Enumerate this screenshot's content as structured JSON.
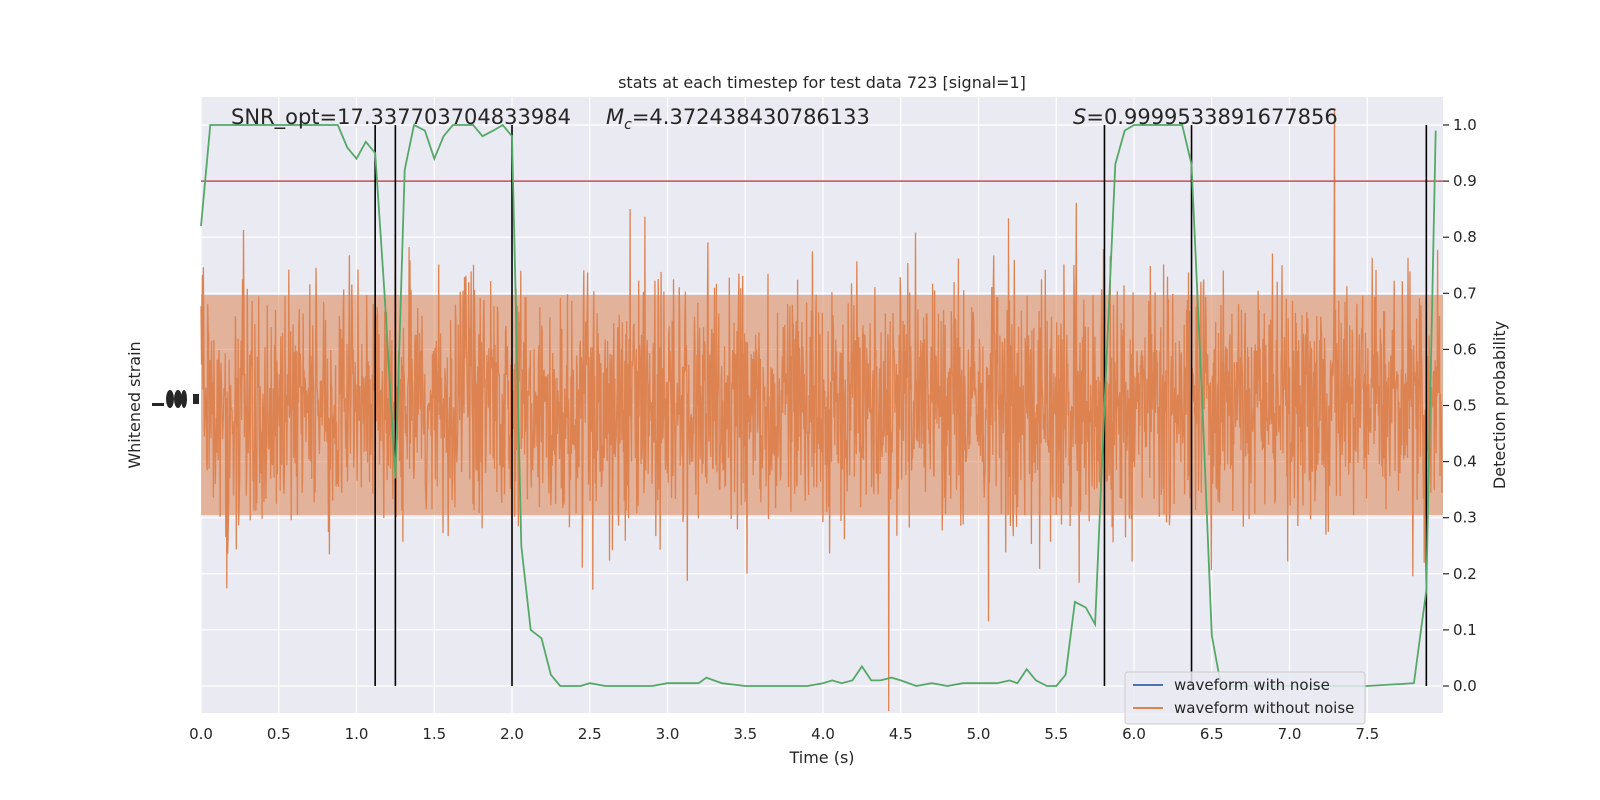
{
  "chart_data": {
    "type": "line",
    "title": "stats at each timestep for test data 723 [signal=1]",
    "xlabel": "Time (s)",
    "ylabel_left": "Whitened strain",
    "ylabel_right": "Detection probability",
    "xlim": [
      0.0,
      8.0
    ],
    "ylim_right": [
      -0.05,
      1.03
    ],
    "x_ticks": [
      0.0,
      0.5,
      1.0,
      1.5,
      2.0,
      2.5,
      3.0,
      3.5,
      4.0,
      4.5,
      5.0,
      5.5,
      6.0,
      6.5,
      7.0,
      7.5
    ],
    "x_tick_labels": [
      "0.0",
      "0.5",
      "1.0",
      "1.5",
      "2.0",
      "2.5",
      "3.0",
      "3.5",
      "4.0",
      "4.5",
      "5.0",
      "5.5",
      "6.0",
      "6.5",
      "7.0",
      "7.5"
    ],
    "y_right_ticks": [
      0.0,
      0.1,
      0.2,
      0.3,
      0.4,
      0.5,
      0.6,
      0.7,
      0.8,
      0.9,
      1.0
    ],
    "y_right_tick_labels": [
      "0.0",
      "0.1",
      "0.2",
      "0.3",
      "0.4",
      "0.5",
      "0.6",
      "0.7",
      "0.8",
      "0.9",
      "1.0"
    ],
    "annotations": {
      "snr": "SNR_opt=17.337703704833984",
      "mc_symbol": "M",
      "mc_subscript": "c",
      "mc_value": "=4.372438430786133",
      "s_symbol": "S",
      "s_value": "=0.9999533891677856"
    },
    "threshold": {
      "value": 0.9,
      "color": "#c44e52"
    },
    "vertical_lines_x": [
      1.12,
      1.25,
      2.0,
      5.81,
      6.37,
      7.88
    ],
    "detection_probability": {
      "name": "detection probability",
      "color": "#55a868",
      "x": [
        0.0,
        0.06,
        0.12,
        0.25,
        0.5,
        0.75,
        0.88,
        0.94,
        1.0,
        1.06,
        1.12,
        1.18,
        1.25,
        1.31,
        1.37,
        1.44,
        1.5,
        1.56,
        1.62,
        1.69,
        1.75,
        1.81,
        1.88,
        1.94,
        2.0,
        2.06,
        2.12,
        2.19,
        2.25,
        2.31,
        2.37,
        2.44,
        2.5,
        2.6,
        2.75,
        2.9,
        3.0,
        3.2,
        3.25,
        3.35,
        3.5,
        3.6,
        3.7,
        3.8,
        3.9,
        4.0,
        4.06,
        4.12,
        4.19,
        4.25,
        4.31,
        4.37,
        4.44,
        4.5,
        4.6,
        4.7,
        4.8,
        4.9,
        5.0,
        5.06,
        5.12,
        5.2,
        5.25,
        5.31,
        5.37,
        5.44,
        5.5,
        5.56,
        5.62,
        5.69,
        5.75,
        5.81,
        5.88,
        5.94,
        6.0,
        6.1,
        6.2,
        6.31,
        6.37,
        6.44,
        6.5,
        6.56,
        6.62,
        6.69,
        6.75,
        7.0,
        7.5,
        7.8,
        7.88,
        7.94
      ],
      "y": [
        0.82,
        1.0,
        1.0,
        1.0,
        1.0,
        1.0,
        1.0,
        0.96,
        0.94,
        0.97,
        0.95,
        0.7,
        0.37,
        0.92,
        1.0,
        0.99,
        0.94,
        0.98,
        1.0,
        1.0,
        1.0,
        0.98,
        0.99,
        1.0,
        0.98,
        0.25,
        0.1,
        0.085,
        0.02,
        0.0,
        0.0,
        0.0,
        0.005,
        0.0,
        0.0,
        0.0,
        0.005,
        0.005,
        0.015,
        0.005,
        0.0,
        0.0,
        0.0,
        0.0,
        0.0,
        0.005,
        0.01,
        0.005,
        0.01,
        0.035,
        0.01,
        0.01,
        0.015,
        0.01,
        0.0,
        0.005,
        0.0,
        0.005,
        0.005,
        0.005,
        0.005,
        0.01,
        0.005,
        0.03,
        0.01,
        0.0,
        0.0,
        0.02,
        0.15,
        0.14,
        0.11,
        0.5,
        0.93,
        0.99,
        1.0,
        1.0,
        1.0,
        1.0,
        0.93,
        0.5,
        0.09,
        0.0,
        0.0,
        0.0,
        0.0,
        0.0,
        0.0,
        0.005,
        0.17,
        0.99
      ]
    },
    "legend": {
      "placement": "lower-right",
      "entries": [
        {
          "label": "waveform with noise",
          "color": "#4c72b0"
        },
        {
          "label": "waveform without noise",
          "color": "#dd8452"
        }
      ]
    },
    "waveform_color": "#dd8452",
    "background_color": "#eaeaf2",
    "grid": true
  }
}
